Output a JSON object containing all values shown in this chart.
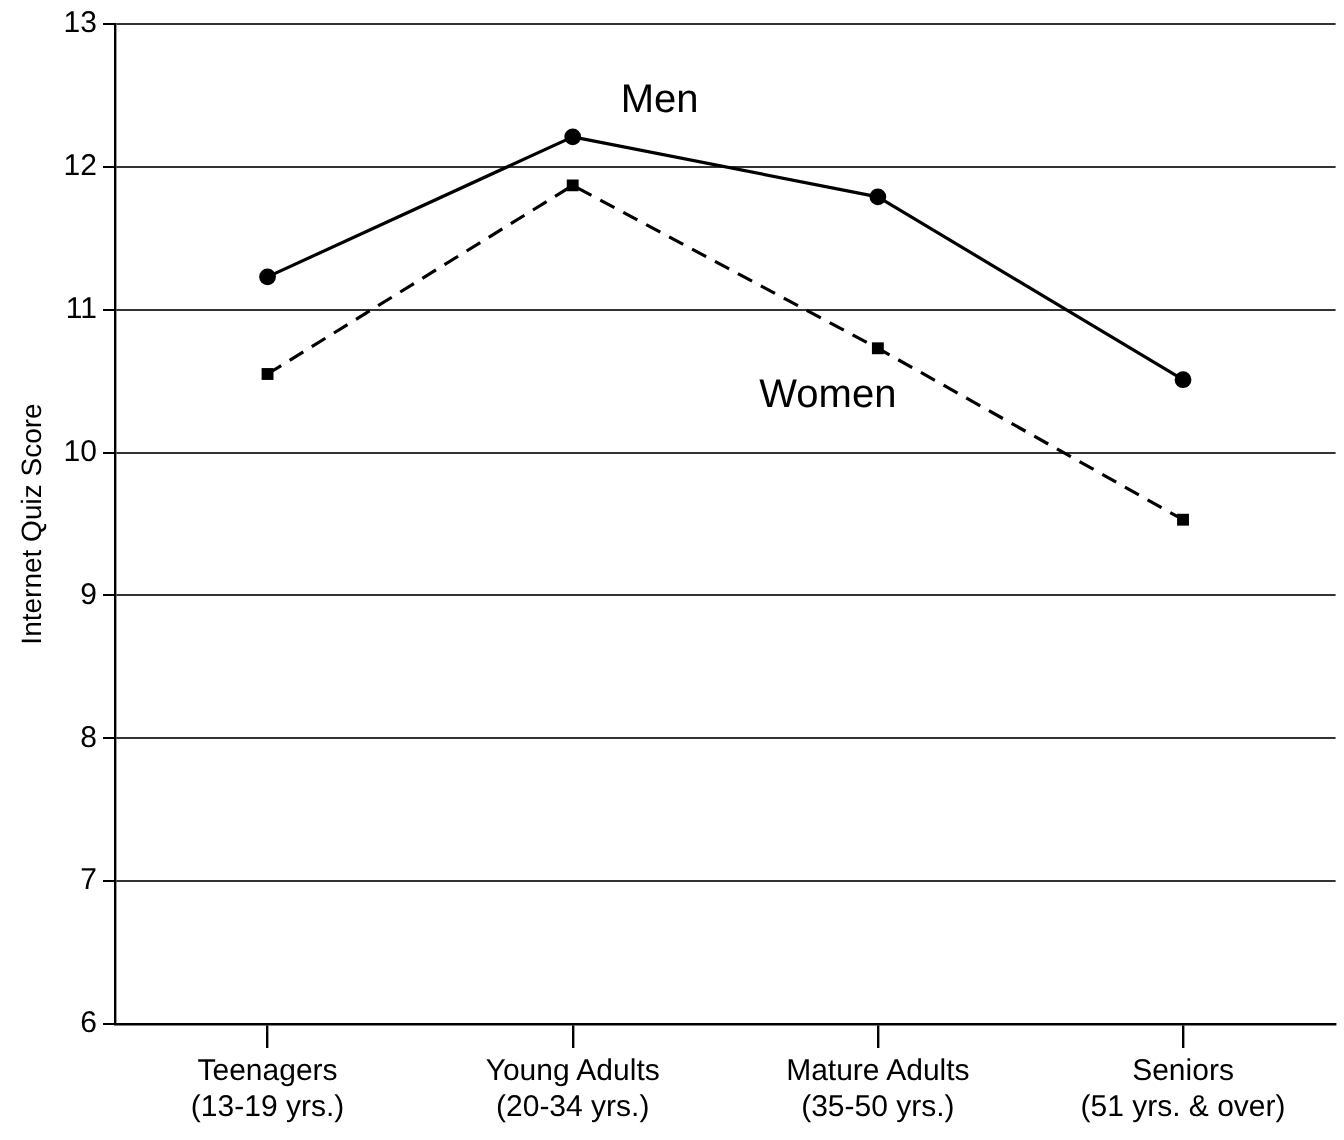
{
  "chart_data": {
    "type": "line",
    "ylabel": "Internet Quiz Score",
    "categories": [
      "Teenagers\n(13-19 yrs.)",
      "Young Adults\n(20-34 yrs.)",
      "Mature Adults\n(35-50 yrs.)",
      "Seniors\n(51 yrs. & over)"
    ],
    "series": [
      {
        "name": "Men",
        "color": "#000000",
        "marker": "circle",
        "line_style": "solid",
        "values": [
          11.23,
          12.21,
          11.79,
          10.51
        ]
      },
      {
        "name": "Women",
        "color": "#000000",
        "marker": "square",
        "line_style": "dashed",
        "values": [
          10.55,
          11.87,
          10.73,
          9.53
        ]
      }
    ],
    "ylim": [
      6,
      13
    ],
    "yticks": [
      6,
      7,
      8,
      9,
      10,
      11,
      12,
      13
    ],
    "grid": "y",
    "legend": false
  }
}
